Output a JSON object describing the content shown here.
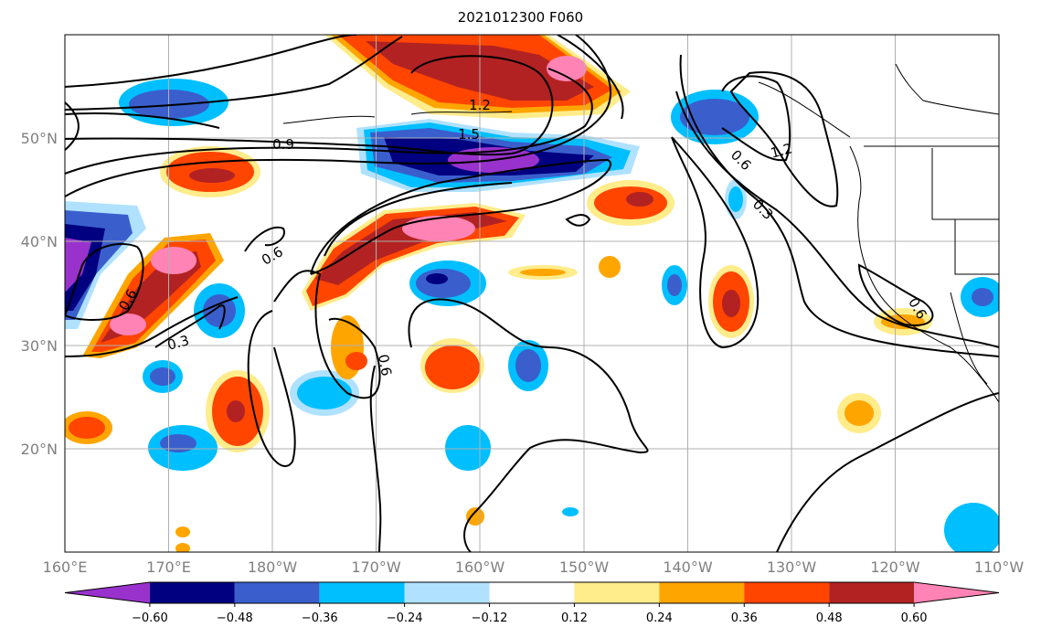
{
  "title": "2021012300 F060",
  "lon_ticks": [
    "160°E",
    "170°E",
    "180°W",
    "170°W",
    "160°W",
    "150°W",
    "140°W",
    "130°W",
    "120°W",
    "110°W"
  ],
  "lat_ticks": [
    "50°N",
    "40°N",
    "30°N",
    "20°N"
  ],
  "colorbar": {
    "tick_labels": [
      "−0.60",
      "−0.48",
      "−0.36",
      "−0.24",
      "−0.12",
      "0.12",
      "0.24",
      "0.36",
      "0.48",
      "0.60"
    ],
    "colors": [
      "#9932CC",
      "#000080",
      "#3A5FCD",
      "#00BFFF",
      "#B0E2FF",
      "#FFFFFF",
      "#FFEC8B",
      "#FFA500",
      "#FF4500",
      "#B22222",
      "#FF83B4"
    ]
  },
  "contour_labels": [
    "1.2",
    "1.5",
    "0.9",
    "0.6",
    "0.6",
    "0.3",
    "0.6",
    "1.2",
    "0.6",
    "0.3",
    "0.6"
  ]
}
